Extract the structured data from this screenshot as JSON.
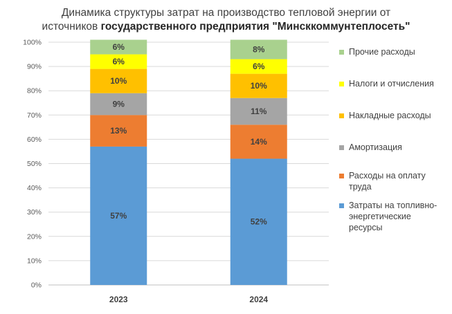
{
  "title": {
    "line1": "Динамика структуры затрат на производство тепловой энергии от",
    "line2_prefix": "источников ",
    "line2_bold": "государственного  предприятия  \"Минсккоммунтеплосеть\""
  },
  "chart_data": {
    "type": "bar",
    "stacked": true,
    "categories": [
      "2023",
      "2024"
    ],
    "series": [
      {
        "name": "Затраты на топливно-энергетические ресурсы",
        "values": [
          57,
          52
        ],
        "labels": [
          "57%",
          "52%"
        ],
        "color": "#5b9bd5"
      },
      {
        "name": "Расходы на оплату труда",
        "values": [
          13,
          14
        ],
        "labels": [
          "13%",
          "14%"
        ],
        "color": "#ed7d31"
      },
      {
        "name": "Амортизация",
        "values": [
          9,
          11
        ],
        "labels": [
          "9%",
          "11%"
        ],
        "color": "#a5a5a5"
      },
      {
        "name": "Накладные расходы",
        "values": [
          10,
          10
        ],
        "labels": [
          "10%",
          "10%"
        ],
        "color": "#ffc000"
      },
      {
        "name": "Налоги и отчисления",
        "values": [
          6,
          6
        ],
        "labels": [
          "6%",
          "6%"
        ],
        "color": "#ffff00"
      },
      {
        "name": "Прочие расходы",
        "values": [
          6,
          8
        ],
        "labels": [
          "6%",
          "8%"
        ],
        "color": "#a9d18e"
      }
    ],
    "ylim": [
      0,
      100
    ],
    "yticks": [
      "0%",
      "10%",
      "20%",
      "30%",
      "40%",
      "50%",
      "60%",
      "70%",
      "80%",
      "90%",
      "100%"
    ],
    "grid": true,
    "legend_position": "right",
    "legend_order": [
      "Прочие расходы",
      "Налоги и отчисления",
      "Накладные расходы",
      "Амортизация",
      "Расходы на оплату труда",
      "Затраты на топливно-энергетические ресурсы"
    ],
    "legend_display": [
      [
        "Прочие расходы"
      ],
      [
        "Налоги и отчисления"
      ],
      [
        "Накладные расходы"
      ],
      [
        "Амортизация"
      ],
      [
        "Расходы на оплату",
        "труда"
      ],
      [
        "Затраты на топливно-",
        "энергетические",
        "ресурсы"
      ]
    ]
  }
}
